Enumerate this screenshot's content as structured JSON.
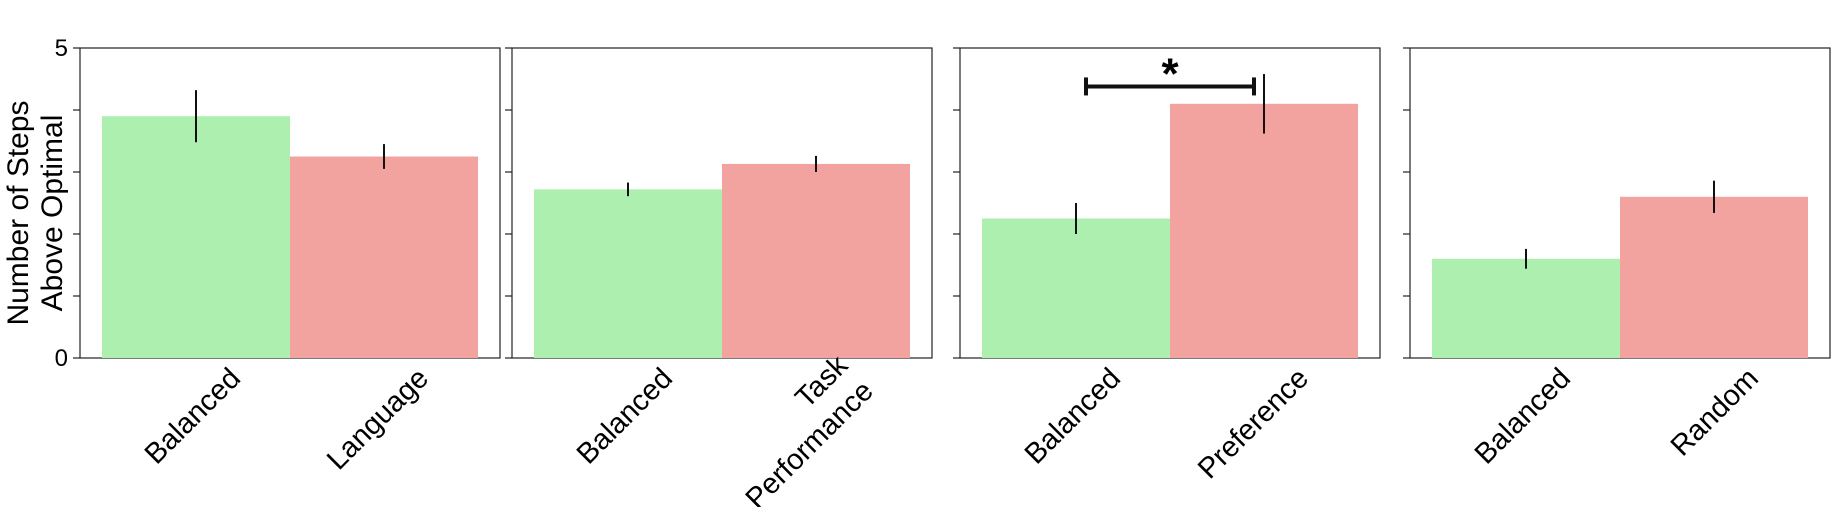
{
  "chart_data": [
    {
      "type": "bar",
      "categories": [
        "Balanced",
        "Language"
      ],
      "values": [
        3.9,
        3.25
      ],
      "errors": [
        0.42,
        0.2
      ],
      "colors": [
        "#acefaf",
        "#f3a39f"
      ],
      "ylabel_lines": [
        "Number of Steps",
        "Above Optimal"
      ],
      "ylim": [
        0,
        5
      ],
      "yticks": [
        0,
        1,
        2,
        3,
        4,
        5
      ],
      "ytick_labels": [
        "0",
        "5"
      ]
    },
    {
      "type": "bar",
      "categories": [
        "Balanced",
        "Task Performance"
      ],
      "category_lines": [
        [
          "Balanced"
        ],
        [
          "Task",
          "Performance"
        ]
      ],
      "values": [
        2.72,
        3.13
      ],
      "errors": [
        0.11,
        0.13
      ],
      "colors": [
        "#acefaf",
        "#f3a39f"
      ],
      "ylim": [
        0,
        5
      ],
      "yticks": [
        0,
        1,
        2,
        3,
        4,
        5
      ]
    },
    {
      "type": "bar",
      "categories": [
        "Balanced",
        "Preference"
      ],
      "values": [
        2.25,
        4.1
      ],
      "errors": [
        0.25,
        0.48
      ],
      "colors": [
        "#acefaf",
        "#f3a39f"
      ],
      "ylim": [
        0,
        5
      ],
      "yticks": [
        0,
        1,
        2,
        3,
        4,
        5
      ],
      "significance": {
        "from": 0,
        "to": 1,
        "y": 4.38,
        "label": "*"
      }
    },
    {
      "type": "bar",
      "categories": [
        "Balanced",
        "Random"
      ],
      "values": [
        1.6,
        2.6
      ],
      "errors": [
        0.16,
        0.26
      ],
      "colors": [
        "#acefaf",
        "#f3a39f"
      ],
      "ylim": [
        0,
        5
      ],
      "yticks": [
        0,
        1,
        2,
        3,
        4,
        5
      ]
    }
  ]
}
